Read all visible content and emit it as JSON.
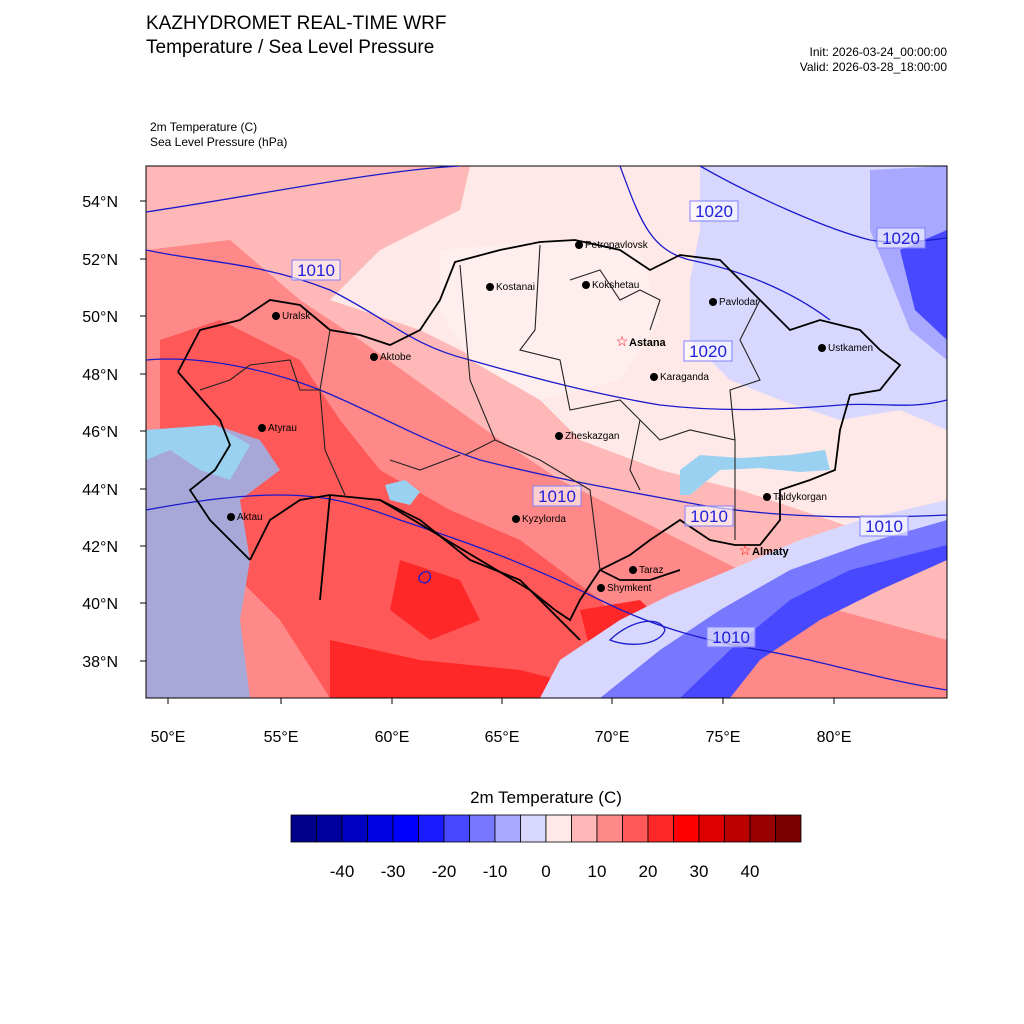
{
  "header": {
    "title": "KAZHYDROMET REAL-TIME WRF",
    "subtitle": "Temperature / Sea Level Pressure",
    "init": "Init: 2026-03-24_00:00:00",
    "valid": "Valid: 2026-03-28_18:00:00",
    "field1": "2m Temperature   (C)",
    "field2": "Sea Level Pressure   (hPa)"
  },
  "axes": {
    "lat_labels": [
      "54°N",
      "52°N",
      "50°N",
      "48°N",
      "46°N",
      "44°N",
      "42°N",
      "40°N",
      "38°N"
    ],
    "lon_labels": [
      "50°E",
      "55°E",
      "60°E",
      "65°E",
      "70°E",
      "75°E",
      "80°E"
    ]
  },
  "cities": [
    {
      "name": "Petropavlovsk",
      "capital": false
    },
    {
      "name": "Kostanai",
      "capital": false
    },
    {
      "name": "Kokshetau",
      "capital": false
    },
    {
      "name": "Pavlodar",
      "capital": false
    },
    {
      "name": "Uralsk",
      "capital": false
    },
    {
      "name": "Astana",
      "capital": true
    },
    {
      "name": "Aktobe",
      "capital": false
    },
    {
      "name": "Ustkamen",
      "capital": false
    },
    {
      "name": "Karaganda",
      "capital": false
    },
    {
      "name": "Atyrau",
      "capital": false
    },
    {
      "name": "Zheskazgan",
      "capital": false
    },
    {
      "name": "Taldykorgan",
      "capital": false
    },
    {
      "name": "Aktau",
      "capital": false
    },
    {
      "name": "Kyzylorda",
      "capital": false
    },
    {
      "name": "Almaty",
      "capital": true
    },
    {
      "name": "Taraz",
      "capital": false
    },
    {
      "name": "Shymkent",
      "capital": false
    }
  ],
  "isobar_labels": [
    "1020",
    "1020",
    "1010",
    "1020",
    "1010",
    "1010",
    "1010",
    "1010"
  ],
  "colorbar": {
    "title": "2m Temperature  (C)",
    "labels": [
      "-40",
      "-30",
      "-20",
      "-10",
      "0",
      "10",
      "20",
      "30",
      "40"
    ],
    "colors": [
      "#00008b",
      "#00009e",
      "#0000c3",
      "#0000e0",
      "#0000ff",
      "#1a1aff",
      "#4848ff",
      "#7878ff",
      "#a8a8ff",
      "#d8d8ff",
      "#ffe8e8",
      "#ffb8b8",
      "#ff8888",
      "#ff5858",
      "#ff2828",
      "#ff0000",
      "#dd0000",
      "#bb0000",
      "#9a0000",
      "#7a0000"
    ]
  }
}
